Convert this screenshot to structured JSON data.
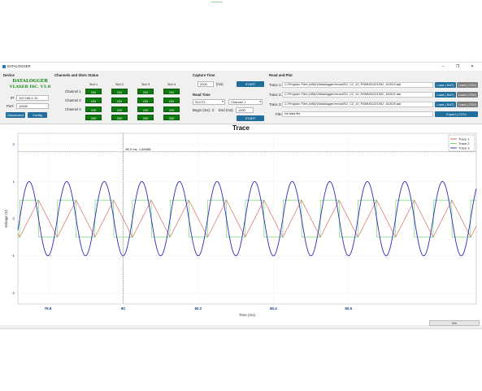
{
  "window": {
    "title": "DATALOGGER",
    "min_icon": "minimize-icon",
    "max_icon": "maximize-icon",
    "close_icon": "close-icon",
    "min": "–",
    "max": "❐",
    "close": "✕"
  },
  "device": {
    "title": "Device",
    "logo_line1": "DATALOGGER",
    "logo_line2": "VLASER ISC. V1.0",
    "ip_label": "IP:",
    "ip_value": "192.168.1.10",
    "port_label": "Port:",
    "port_value": "10000",
    "disconnect_label": "Disconnect",
    "config_label": "Config"
  },
  "channels": {
    "title": "Channels and Slots Status",
    "slots": [
      "Slot 1",
      "Slot 2",
      "Slot 3",
      "Slot 4"
    ],
    "rows": [
      "Channel 1",
      "Channel 2",
      "Channel 3"
    ],
    "on_label": "ON",
    "bottom_values": [
      "330",
      "330",
      "330",
      "330"
    ]
  },
  "capture": {
    "title": "Capture Time",
    "value": "2000",
    "unit": "(ms)",
    "start_label": "START",
    "read_title": "Read Time",
    "slot_value": "SLOT1",
    "channel_value": "Channel 1",
    "begin_label": "Begin (ms):",
    "begin_value": "0",
    "end_label": "End (ms):",
    "end_value": "1000",
    "read_start_label": "START"
  },
  "readplot": {
    "title": "Read and Plot",
    "traces": [
      {
        "label": "Trace 1:",
        "path": "C:/Program Files (x86)/Vldatalogger/record/S1_C1_10_RSMNS0221902_162616.dat"
      },
      {
        "label": "Trace 2:",
        "path": "C:/Program Files (x86)/Vldatalogger/record/S1_C2_10_RSMNS0221902_162621.dat"
      },
      {
        "label": "Trace 3:",
        "path": "C:/Program Files (x86)/Vldatalogger/record/S1_C3_10_RSMNS0221902_162625.dat"
      }
    ],
    "load_bat": "Load (.BAT)",
    "load_csv": "Load (.CSV)",
    "file_label": "File:",
    "file_value": "No data file",
    "export_label": "Export (.CSV)"
  },
  "status": {
    "progress": "0%"
  },
  "chart_data": {
    "type": "line",
    "title": "Trace",
    "xlabel": "Time (ms)",
    "ylabel": "Voltage (V)",
    "xlim": [
      79.72,
      80.94
    ],
    "ylim": [
      -2.3,
      2.3
    ],
    "x_ticks": [
      79.8,
      80,
      80.2,
      80.4,
      80.6
    ],
    "x_tick_labels": [
      "79.8",
      "80",
      "80.2",
      "80.4",
      "80.6"
    ],
    "y_ticks": [
      -2,
      -1,
      0,
      1,
      2
    ],
    "y_tick_labels": [
      "-2",
      "-1",
      "0",
      "1",
      "2"
    ],
    "period_ms": 0.1,
    "phase_ms": 79.725,
    "cursor": {
      "x": 80.0,
      "y": 1.8,
      "label": "80.0 ms, 1.84988"
    },
    "legend_position": "top-right",
    "series": [
      {
        "name": "Trace 1",
        "shape": "triangle",
        "amplitude": 0.5,
        "color": "#d9534f"
      },
      {
        "name": "Trace 2",
        "shape": "square",
        "amplitude": 0.5,
        "color": "#5cd65c"
      },
      {
        "name": "Trace 3",
        "shape": "sine",
        "amplitude": 1.0,
        "color": "#2b2bb8"
      }
    ]
  }
}
